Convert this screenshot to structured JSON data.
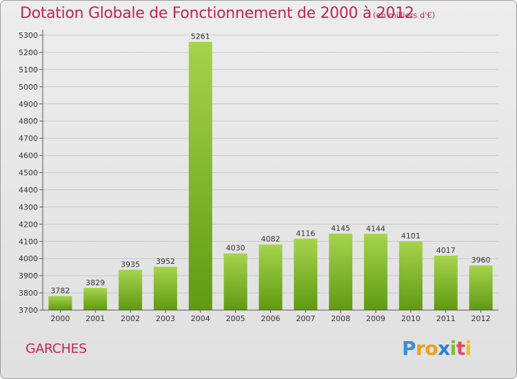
{
  "header": {
    "title": "Dotation Globale de Fonctionnement de 2000 à 2012",
    "unit": "(en milliers d'€)"
  },
  "footer": {
    "commune": "GARCHES",
    "logo": "Proxiti"
  },
  "colors": {
    "title": "#c0245c",
    "bar_light": "#a6d44c",
    "bar_dark": "#5f9a12",
    "grid": "#c8c8c8",
    "background": "#e6e6e6"
  },
  "chart_data": {
    "type": "bar",
    "title": "Dotation Globale de Fonctionnement de 2000 à 2012",
    "xlabel": "",
    "ylabel": "",
    "categories": [
      "2000",
      "2001",
      "2002",
      "2003",
      "2004",
      "2005",
      "2006",
      "2007",
      "2008",
      "2009",
      "2010",
      "2011",
      "2012"
    ],
    "values": [
      3782,
      3829,
      3935,
      3952,
      5261,
      4030,
      4082,
      4116,
      4145,
      4144,
      4101,
      4017,
      3960
    ],
    "ylim": [
      3700,
      5300
    ],
    "yticks": [
      3700,
      3800,
      3900,
      4000,
      4100,
      4200,
      4300,
      4400,
      4500,
      4600,
      4700,
      4800,
      4900,
      5000,
      5100,
      5200,
      5300
    ],
    "grid": true,
    "legend": "none"
  }
}
